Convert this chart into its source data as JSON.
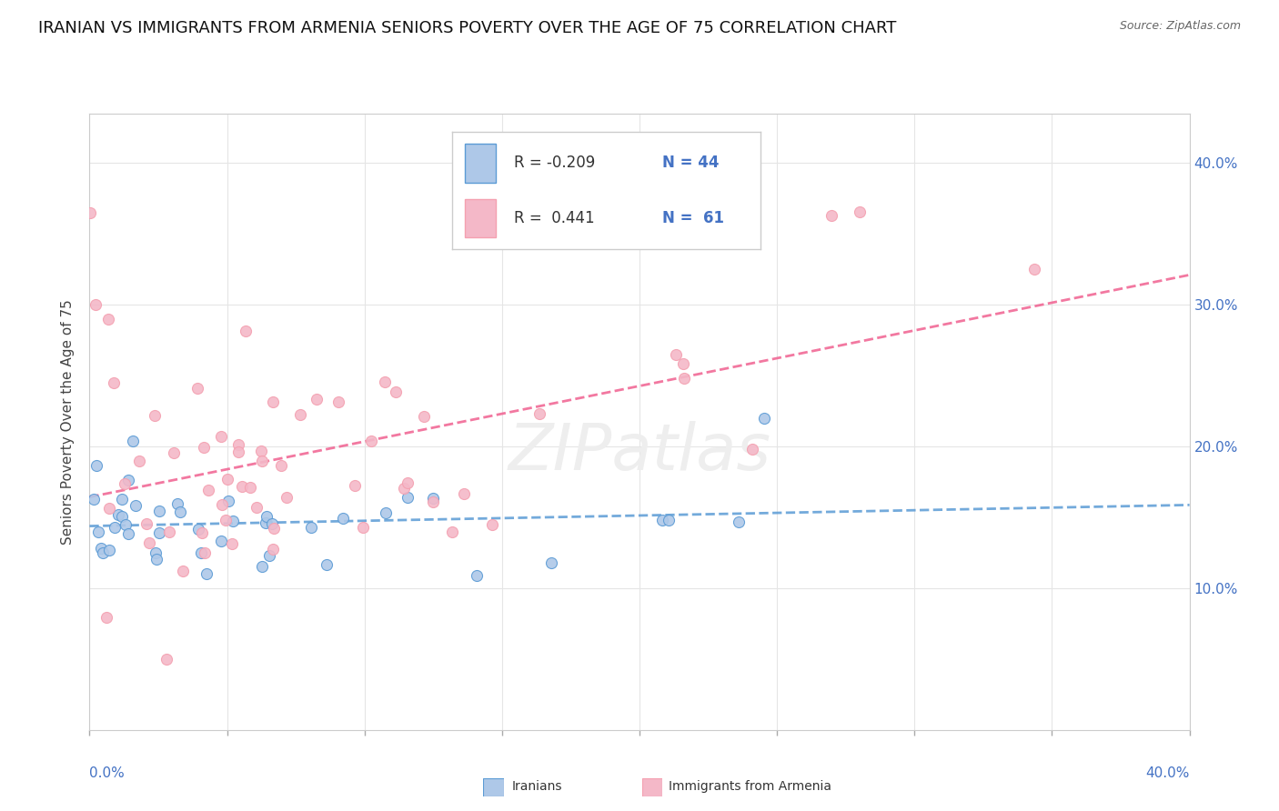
{
  "title": "IRANIAN VS IMMIGRANTS FROM ARMENIA SENIORS POVERTY OVER THE AGE OF 75 CORRELATION CHART",
  "source": "Source: ZipAtlas.com",
  "ylabel": "Seniors Poverty Over the Age of 75",
  "xmin": 0.0,
  "xmax": 0.4,
  "ymin": 0.0,
  "ymax": 0.435,
  "yticks": [
    0.1,
    0.2,
    0.3,
    0.4
  ],
  "ytick_labels": [
    "10.0%",
    "20.0%",
    "30.0%",
    "40.0%"
  ],
  "color_iranian_fill": "#aec8e8",
  "color_iranian_edge": "#5b9bd5",
  "color_armenia_fill": "#f4b8c8",
  "color_armenia_edge": "#f4a0b0",
  "color_trend_iranian": "#5b9bd5",
  "color_trend_armenia": "#f06090",
  "iranian_R": -0.209,
  "iranian_N": 44,
  "armenia_R": 0.441,
  "armenia_N": 61,
  "background_color": "#ffffff",
  "grid_color": "#e5e5e5",
  "title_fontsize": 13,
  "axis_label_fontsize": 11,
  "tick_fontsize": 11,
  "watermark_color": "#eeeeee"
}
